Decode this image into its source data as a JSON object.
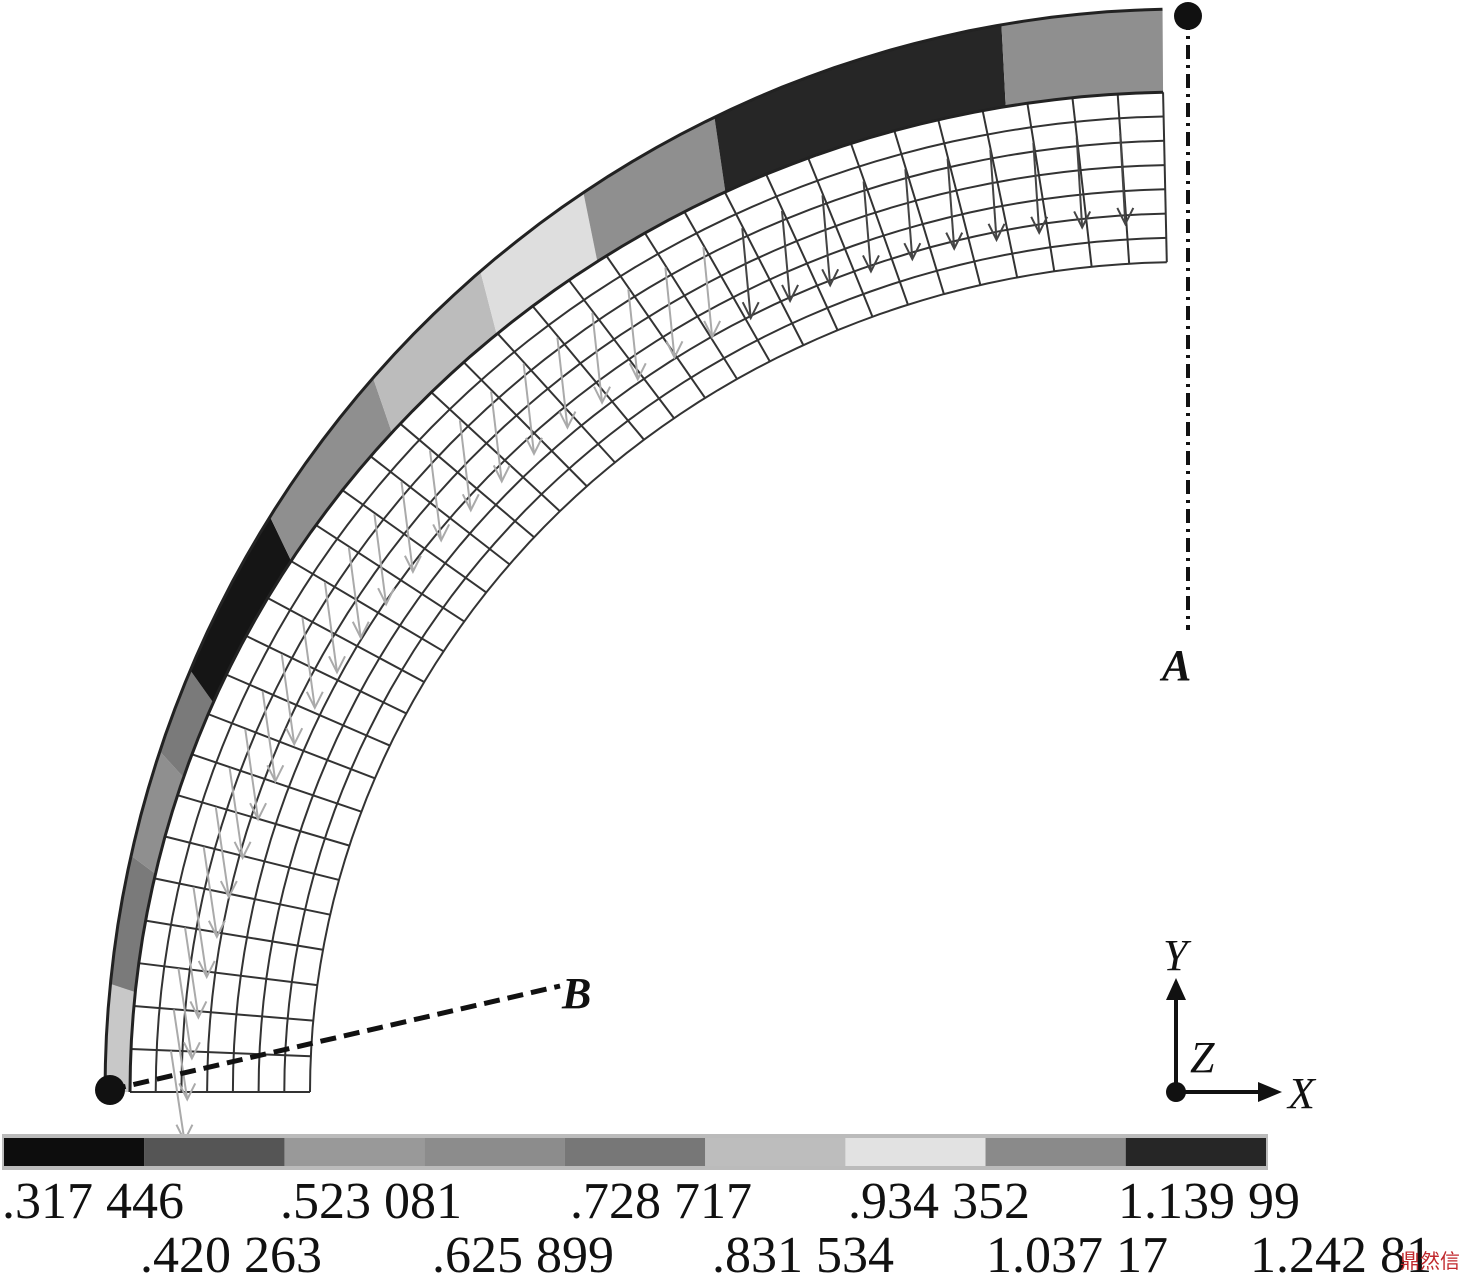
{
  "figure": {
    "point_labels": {
      "a": "A",
      "b": "B"
    },
    "axes": {
      "x": "X",
      "y": "Y",
      "z": "Z"
    }
  },
  "legend": {
    "colors": [
      "#0d0d0d",
      "#555555",
      "#999999",
      "#8c8c8c",
      "#777777",
      "#bdbdbd",
      "#e2e2e2",
      "#8a8a8a",
      "#262626"
    ],
    "ticks_top": [
      ".317 446",
      ".523 081",
      ".728 717",
      ".934 352",
      "1.139 99"
    ],
    "ticks_bottom": [
      ".420 263",
      ".625 899",
      ".831 534",
      "1.037 17",
      "1.242 81"
    ]
  },
  "contour_colors": {
    "near_a": "#262626",
    "mid_upper": "#bcbcbc",
    "light": "#dedede",
    "mid": "#8f8f8f",
    "dark_band": "#151515",
    "lower_mid": "#7a7a7a",
    "near_b": "#c8c8c8"
  },
  "watermark": "鼎然信"
}
